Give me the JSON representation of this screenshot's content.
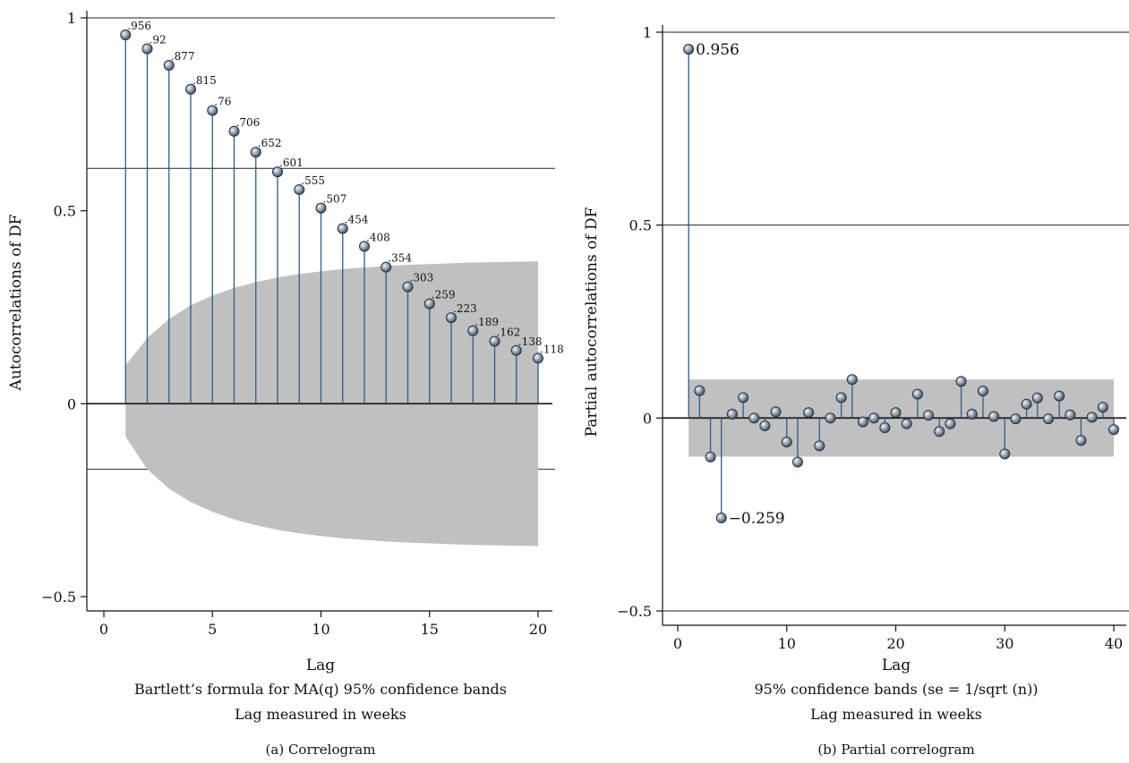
{
  "panels": [
    {
      "caption": "(a)  Correlogram",
      "notes": [
        "Bartlett’s formula for MA(q) 95% confidence bands",
        "Lag measured in weeks"
      ],
      "band_color": "#c0c0c0",
      "stem_color": "#2e5b86",
      "chart_data": {
        "type": "stem",
        "xlabel": "Lag",
        "ylabel": "Autocorrelations of DF",
        "xlim": [
          0,
          20
        ],
        "ylim": [
          -0.5,
          1
        ],
        "xticks": [
          0,
          5,
          10,
          15,
          20
        ],
        "yticks": [
          -0.5,
          0,
          0.5,
          1
        ],
        "ytick_labels": [
          "−0.5",
          "0",
          "0.5",
          "1"
        ],
        "reference_lines": [
          1,
          0.61,
          -0.17
        ],
        "x": [
          1,
          2,
          3,
          4,
          5,
          6,
          7,
          8,
          9,
          10,
          11,
          12,
          13,
          14,
          15,
          16,
          17,
          18,
          19,
          20
        ],
        "values": [
          0.956,
          0.92,
          0.877,
          0.815,
          0.76,
          0.706,
          0.652,
          0.601,
          0.555,
          0.507,
          0.454,
          0.408,
          0.354,
          0.303,
          0.259,
          0.223,
          0.189,
          0.162,
          0.138,
          0.118
        ],
        "value_labels": [
          ".956",
          ".92",
          ".877",
          ".815",
          ".76",
          ".706",
          ".652",
          ".601",
          ".555",
          ".507",
          ".454",
          ".408",
          ".354",
          ".303",
          ".259",
          ".223",
          ".189",
          ".162",
          ".138",
          ".118"
        ],
        "confidence_band": {
          "x": [
            1,
            2,
            3,
            4,
            5,
            6,
            7,
            8,
            9,
            10,
            11,
            12,
            13,
            14,
            15,
            16,
            17,
            18,
            19,
            20
          ],
          "upper": [
            0.1,
            0.17,
            0.22,
            0.255,
            0.28,
            0.3,
            0.315,
            0.327,
            0.336,
            0.343,
            0.349,
            0.353,
            0.357,
            0.36,
            0.362,
            0.364,
            0.366,
            0.367,
            0.368,
            0.369
          ],
          "lower": [
            -0.085,
            -0.17,
            -0.22,
            -0.255,
            -0.28,
            -0.3,
            -0.315,
            -0.327,
            -0.336,
            -0.343,
            -0.349,
            -0.353,
            -0.357,
            -0.36,
            -0.362,
            -0.364,
            -0.366,
            -0.367,
            -0.368,
            -0.369
          ]
        }
      }
    },
    {
      "caption": "(b)  Partial correlogram",
      "notes": [
        "95% confidence bands (se = 1/sqrt (n))",
        "Lag measured in weeks"
      ],
      "band_color": "#c0c0c0",
      "stem_color": "#2e5b86",
      "chart_data": {
        "type": "stem",
        "xlabel": "Lag",
        "ylabel": "Partial autocorrelations of DF",
        "xlim": [
          0,
          40
        ],
        "ylim": [
          -0.5,
          1
        ],
        "xticks": [
          0,
          10,
          20,
          30,
          40
        ],
        "yticks": [
          -0.5,
          0,
          0.5,
          1
        ],
        "ytick_labels": [
          "−0.5",
          "0",
          "0.5",
          "1"
        ],
        "reference_lines": [
          1,
          0.5,
          -0.5
        ],
        "x": [
          1,
          2,
          3,
          4,
          5,
          6,
          7,
          8,
          9,
          10,
          11,
          12,
          13,
          14,
          15,
          16,
          17,
          18,
          19,
          20,
          21,
          22,
          23,
          24,
          25,
          26,
          27,
          28,
          29,
          30,
          31,
          32,
          33,
          34,
          35,
          36,
          37,
          38,
          39,
          40
        ],
        "values": [
          0.956,
          0.071,
          -0.101,
          -0.259,
          0.01,
          0.053,
          0.0,
          -0.02,
          0.016,
          -0.062,
          -0.114,
          0.014,
          -0.072,
          0.0,
          0.053,
          0.1,
          -0.01,
          0.0,
          -0.025,
          0.014,
          -0.015,
          0.062,
          0.007,
          -0.035,
          -0.015,
          0.095,
          0.01,
          0.07,
          0.004,
          -0.093,
          -0.002,
          0.036,
          0.052,
          -0.002,
          0.057,
          0.008,
          -0.058,
          0.002,
          0.028,
          -0.03
        ],
        "annotations": [
          {
            "x": 1,
            "y": 0.956,
            "text": "0.956"
          },
          {
            "x": 4,
            "y": -0.259,
            "text": "−0.259"
          }
        ],
        "confidence_band": {
          "x": [
            1,
            40
          ],
          "upper": [
            0.1,
            0.1
          ],
          "lower": [
            -0.1,
            -0.1
          ]
        }
      }
    }
  ]
}
